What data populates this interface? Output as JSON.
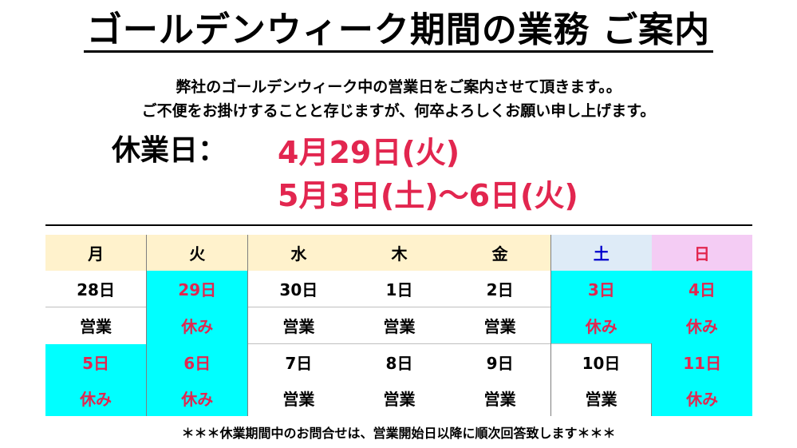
{
  "title": "ゴールデンウィーク期間の業務 ご案内",
  "intro": {
    "line1": "弊社のゴールデンウィーク中の営業日をご案内させて頂きます。。",
    "line2": "ご不便をお掛けすることと存じますが、何卒よろしくお願い申し上げます。"
  },
  "holiday": {
    "label": "休業日：",
    "dates": [
      "4月29日(火)",
      "5月3日(土)〜6日(火)"
    ]
  },
  "calendar": {
    "weekdays": [
      "月",
      "火",
      "水",
      "木",
      "金",
      "土",
      "日"
    ],
    "week1": {
      "days": [
        "28日",
        "29日",
        "30日",
        "1日",
        "2日",
        "3日",
        "4日"
      ],
      "status": [
        "営業",
        "休み",
        "営業",
        "営業",
        "営業",
        "休み",
        "休み"
      ]
    },
    "week2": {
      "days": [
        "5日",
        "6日",
        "7日",
        "8日",
        "9日",
        "10日",
        "11日"
      ],
      "status": [
        "休み",
        "休み",
        "営業",
        "営業",
        "営業",
        "営業",
        "休み"
      ]
    }
  },
  "footer": "＊＊＊休業期間中のお問合せは、営業開始日以降に順次回答致します＊＊＊",
  "colors": {
    "closed_bg": "#00ffff",
    "closed_text": "#e2264f",
    "weekday_header_bg": "#fff2cc",
    "saturday_header_bg": "#deebf7",
    "sunday_header_bg": "#f4ccf4"
  }
}
